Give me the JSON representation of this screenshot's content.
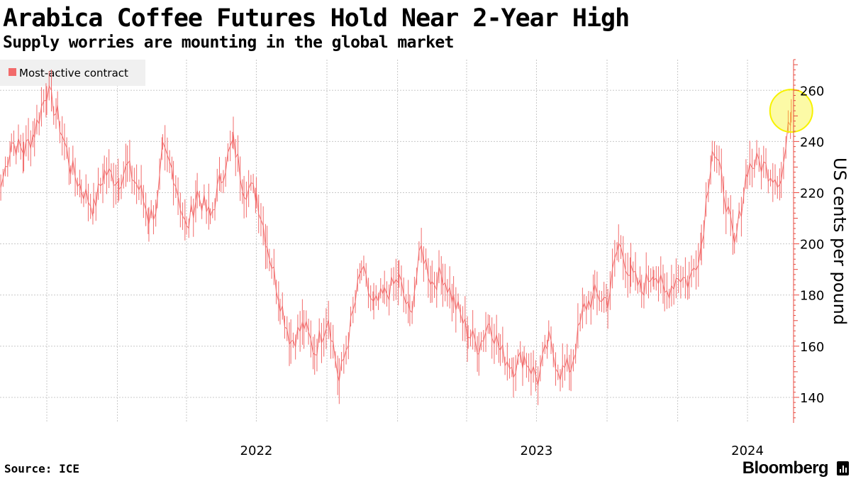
{
  "header": {
    "title": "Arabica Coffee Futures Hold Near 2-Year High",
    "subtitle": "Supply worries are mounting in the global market"
  },
  "footer": {
    "source": "Source: ICE",
    "brand": "Bloomberg",
    "brand_icon": "bloomberg-bars-icon"
  },
  "colors": {
    "series": "#f26b6b",
    "axis": "#e8483f",
    "grid": "#c8c8c8",
    "highlight": "#f7f200"
  },
  "chart_data": {
    "type": "line",
    "title": "Arabica Coffee Futures Hold Near 2-Year High",
    "subtitle": "Supply worries are mounting in the global market",
    "ylabel": "US cents per pound",
    "xlabel": "",
    "legend": {
      "entries": [
        "Most-active contract"
      ],
      "placement": "top-left"
    },
    "grid": true,
    "y_axis_side": "right",
    "ylim": [
      130,
      272
    ],
    "yticks": [
      140,
      160,
      180,
      200,
      220,
      240,
      260
    ],
    "xlim": [
      "2021-08-01",
      "2024-05-31"
    ],
    "xtick_labels": [
      {
        "label": "2022",
        "date": "2022-07-01"
      },
      {
        "label": "2023",
        "date": "2023-07-01"
      },
      {
        "label": "2024",
        "date": "2024-04-01"
      }
    ],
    "x_gridlines": [
      "2021-10-01",
      "2022-01-01",
      "2022-04-01",
      "2022-07-01",
      "2022-10-01",
      "2023-01-01",
      "2023-04-01",
      "2023-07-01",
      "2023-10-01",
      "2024-01-01",
      "2024-04-01",
      "2024-07-01"
    ],
    "highlight": {
      "date": "2024-05-28",
      "value": 252
    },
    "series": [
      {
        "name": "Most-active contract",
        "x": [
          "2021-08-02",
          "2021-08-16",
          "2021-09-01",
          "2021-09-15",
          "2021-10-01",
          "2021-10-15",
          "2021-11-01",
          "2021-11-15",
          "2021-12-01",
          "2021-12-15",
          "2022-01-03",
          "2022-01-14",
          "2022-02-01",
          "2022-02-11",
          "2022-02-22",
          "2022-03-01",
          "2022-03-15",
          "2022-04-01",
          "2022-04-15",
          "2022-05-02",
          "2022-05-16",
          "2022-06-01",
          "2022-06-15",
          "2022-07-01",
          "2022-07-15",
          "2022-08-01",
          "2022-08-15",
          "2022-09-01",
          "2022-09-15",
          "2022-10-03",
          "2022-10-17",
          "2022-11-01",
          "2022-11-15",
          "2022-12-01",
          "2022-12-15",
          "2023-01-03",
          "2023-01-17",
          "2023-02-01",
          "2023-02-15",
          "2023-03-01",
          "2023-03-15",
          "2023-04-03",
          "2023-04-17",
          "2023-05-01",
          "2023-05-15",
          "2023-06-01",
          "2023-06-15",
          "2023-07-03",
          "2023-07-17",
          "2023-08-01",
          "2023-08-15",
          "2023-09-01",
          "2023-09-15",
          "2023-10-02",
          "2023-10-16",
          "2023-11-01",
          "2023-11-15",
          "2023-12-01",
          "2023-12-15",
          "2024-01-02",
          "2024-01-16",
          "2024-02-01",
          "2024-02-15",
          "2024-03-01",
          "2024-03-15",
          "2024-04-01",
          "2024-04-16",
          "2024-05-01",
          "2024-05-15",
          "2024-05-28"
        ],
        "values": [
          222,
          240,
          236,
          244,
          260,
          250,
          230,
          222,
          214,
          228,
          225,
          230,
          220,
          210,
          215,
          236,
          228,
          205,
          220,
          210,
          226,
          240,
          222,
          220,
          200,
          178,
          162,
          168,
          158,
          172,
          146,
          168,
          190,
          175,
          180,
          186,
          172,
          198,
          185,
          188,
          178,
          165,
          160,
          170,
          158,
          152,
          156,
          147,
          162,
          150,
          152,
          175,
          180,
          178,
          200,
          188,
          182,
          190,
          180,
          188,
          185,
          200,
          238,
          222,
          198,
          230,
          232,
          228,
          225,
          252
        ]
      }
    ]
  }
}
